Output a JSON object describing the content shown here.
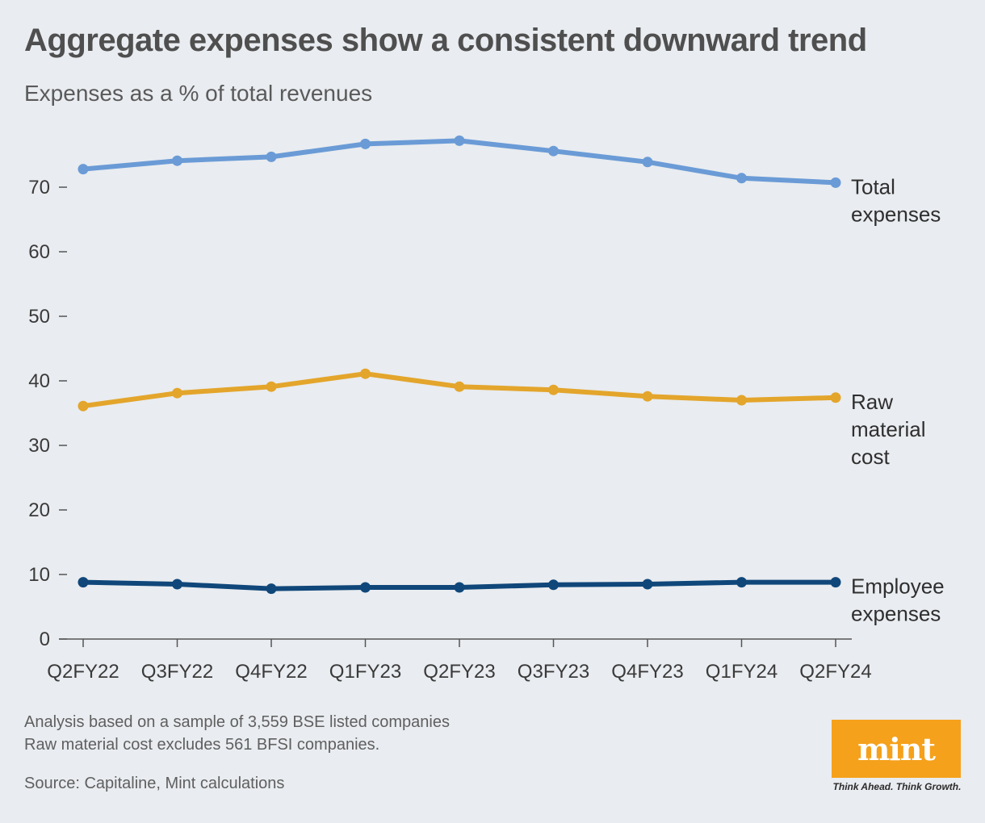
{
  "chart_data": {
    "type": "line",
    "title": "Aggregate expenses show a consistent downward trend",
    "subtitle": "Expenses as a % of total revenues",
    "xlabel": "",
    "ylabel": "",
    "categories": [
      "Q2FY22",
      "Q3FY22",
      "Q4FY22",
      "Q1FY23",
      "Q2FY23",
      "Q3FY23",
      "Q4FY23",
      "Q1FY24",
      "Q2FY24"
    ],
    "ylim": [
      0,
      80
    ],
    "yticks": [
      0,
      10,
      20,
      30,
      40,
      50,
      60,
      70
    ],
    "grid": false,
    "series": [
      {
        "name": "Total expenses",
        "label_lines": [
          "Total",
          "expenses"
        ],
        "color": "#6a9bd6",
        "values": [
          72.8,
          74.1,
          74.7,
          76.7,
          77.2,
          75.6,
          73.9,
          71.4,
          70.7
        ]
      },
      {
        "name": "Raw material cost",
        "label_lines": [
          "Raw",
          "material",
          "cost"
        ],
        "color": "#e3a52b",
        "values": [
          36.1,
          38.1,
          39.1,
          41.1,
          39.1,
          38.6,
          37.6,
          37.0,
          37.4
        ]
      },
      {
        "name": "Employee expenses",
        "label_lines": [
          "Employee",
          "expenses"
        ],
        "color": "#10477a",
        "values": [
          8.8,
          8.5,
          7.8,
          8.0,
          8.0,
          8.4,
          8.5,
          8.8,
          8.8
        ]
      }
    ]
  },
  "notes": {
    "line1": "Analysis based on a sample of 3,559 BSE listed companies",
    "line2": "Raw material cost excludes 561 BFSI companies.",
    "source": "Source: Capitaline, Mint calculations"
  },
  "logo": {
    "text": "mint",
    "tagline": "Think Ahead. Think Growth."
  }
}
